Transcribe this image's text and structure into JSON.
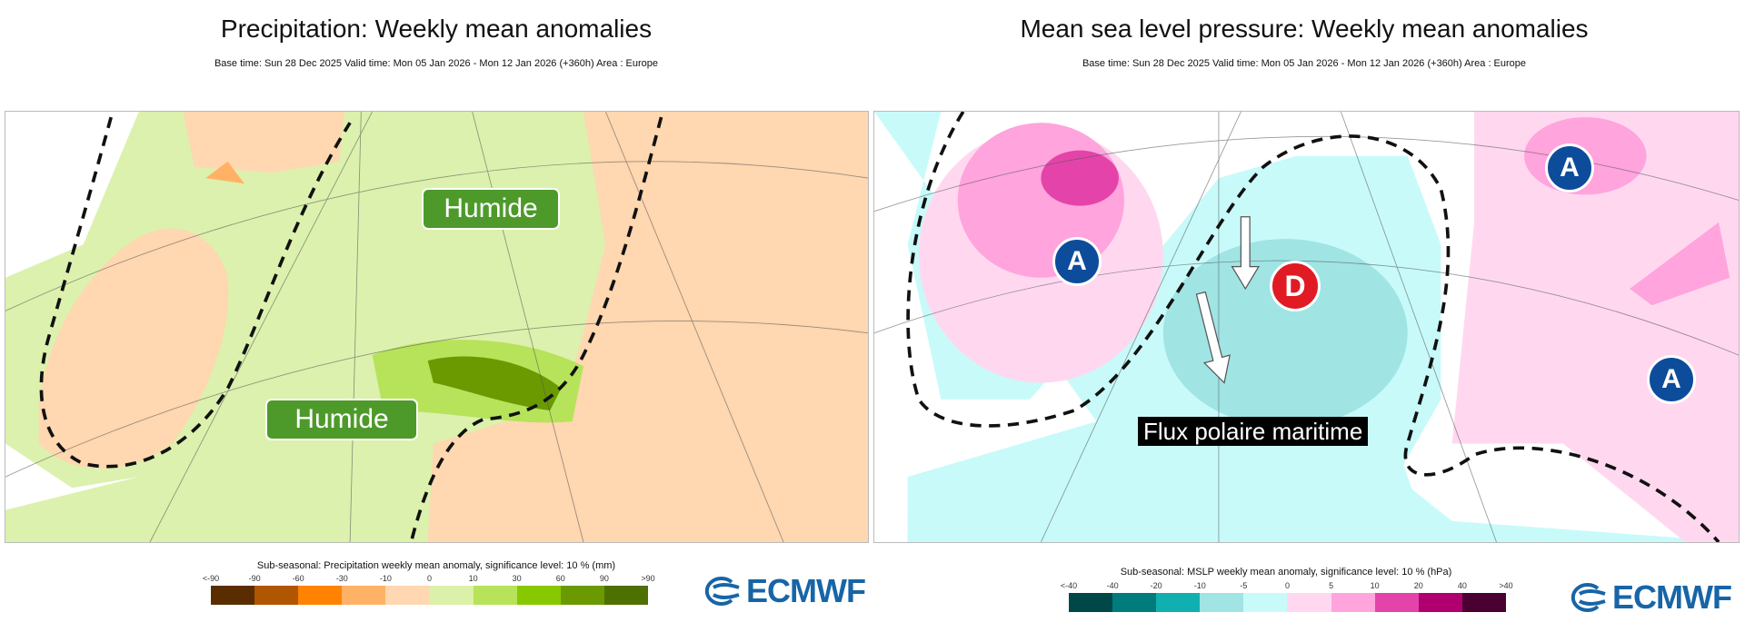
{
  "left": {
    "title": "Precipitation: Weekly mean anomalies",
    "subtitle": "Base time: Sun 28 Dec 2025 Valid time: Mon 05 Jan 2026 - Mon 12 Jan 2026 (+360h) Area : Europe",
    "annotations": [
      "Humide",
      "Humide"
    ],
    "legend": {
      "title": "Sub-seasonal: Precipitation weekly mean anomaly, significance level: 10 % (mm)",
      "ticks": [
        "<-90",
        "-90",
        "-60",
        "-30",
        "-10",
        "0",
        "10",
        "30",
        "60",
        "90",
        ">90"
      ],
      "colors": [
        "#5a2d00",
        "#b05500",
        "#ff8200",
        "#ffb266",
        "#ffd7b0",
        "#dbf0a8",
        "#b6e35a",
        "#88c800",
        "#6a9a00",
        "#4e7000"
      ]
    },
    "logo": "ECMWF"
  },
  "right": {
    "title": "Mean sea level pressure: Weekly mean anomalies",
    "subtitle": "Base time: Sun 28 Dec 2025 Valid time: Mon 05 Jan 2026 - Mon 12 Jan 2026 (+360h) Area : Europe",
    "annotations": {
      "highs": [
        "A",
        "A",
        "A"
      ],
      "low": "D",
      "flow": "Flux polaire maritime"
    },
    "legend": {
      "title": "Sub-seasonal: MSLP weekly mean anomaly, significance level: 10 % (hPa)",
      "ticks": [
        "<-40",
        "-40",
        "-20",
        "-10",
        "-5",
        "0",
        "5",
        "10",
        "20",
        "40",
        ">40"
      ],
      "colors": [
        "#004848",
        "#007c7c",
        "#10b0b0",
        "#a0e4e4",
        "#c8fafa",
        "#ffd8f0",
        "#ffa4dc",
        "#e444aa",
        "#b00070",
        "#4a0030"
      ]
    },
    "logo": "ECMWF"
  },
  "chart_data": [
    {
      "type": "heatmap",
      "title": "Precipitation: Weekly mean anomalies",
      "legend_title": "Sub-seasonal: Precipitation weekly mean anomaly, significance level: 10 % (mm)",
      "bins": [
        "<-90",
        "-90",
        "-60",
        "-30",
        "-10",
        "0",
        "10",
        "30",
        "60",
        "90",
        ">90"
      ],
      "annotations": [
        "Humide",
        "Humide"
      ]
    },
    {
      "type": "heatmap",
      "title": "Mean sea level pressure: Weekly mean anomalies",
      "legend_title": "Sub-seasonal: MSLP weekly mean anomaly, significance level: 10 % (hPa)",
      "bins": [
        "<-40",
        "-40",
        "-20",
        "-10",
        "-5",
        "0",
        "5",
        "10",
        "20",
        "40",
        ">40"
      ],
      "annotations": [
        "A",
        "A",
        "A",
        "D",
        "Flux polaire maritime"
      ]
    }
  ]
}
